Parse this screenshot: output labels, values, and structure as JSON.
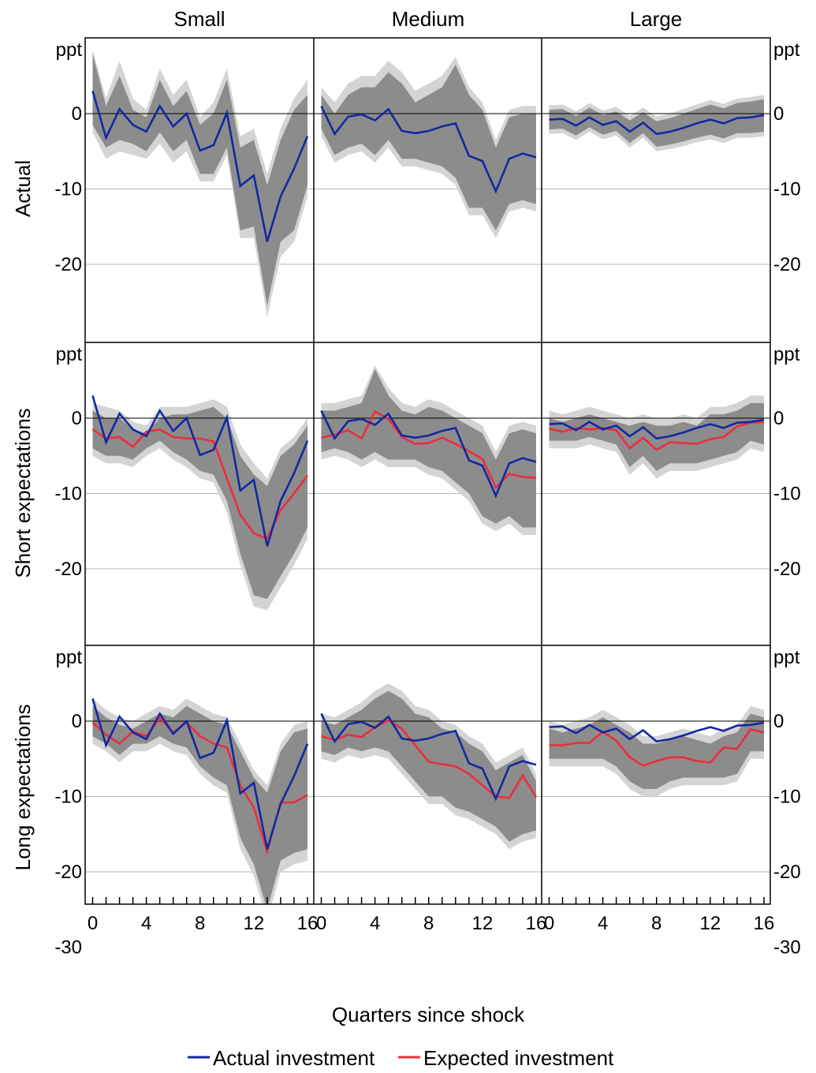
{
  "chart_data": {
    "type": "line",
    "columns": [
      "Small",
      "Medium",
      "Large"
    ],
    "rows": [
      "Actual",
      "Short expectations",
      "Long expectations"
    ],
    "unit_label": "ppt",
    "xlabel": "Quarters since shock",
    "x": [
      0,
      1,
      2,
      3,
      4,
      5,
      6,
      7,
      8,
      9,
      10,
      11,
      12,
      13,
      14,
      15,
      16
    ],
    "x_ticks": [
      0,
      4,
      8,
      12,
      16
    ],
    "x_tick_labels": [
      "0",
      "4",
      "8",
      "12",
      "16"
    ],
    "ylim": [
      -30,
      10
    ],
    "y_tick_labels": [
      "0",
      "-10",
      "-20",
      "-30"
    ],
    "legend": {
      "placement": "bottom",
      "entries": [
        "Actual investment",
        "Expected investment"
      ]
    },
    "colors": {
      "actual": "#1428a0",
      "expected": "#ec2d3c",
      "band_inner": "#8c8c8c",
      "band_outer": "#d4d4d4",
      "grid": "#b4b4b4",
      "zero_line": "#000000"
    },
    "actual": {
      "Small": [
        3,
        -3.2,
        0.6,
        -1.5,
        -2.4,
        1,
        -1.7,
        0,
        -4.9,
        -4.2,
        0.1,
        -9.6,
        -8.2,
        -17,
        -11,
        -7.3,
        -3
      ],
      "Medium": [
        1,
        -2.7,
        -0.4,
        -0.1,
        -0.9,
        0.6,
        -2.3,
        -2.6,
        -2.3,
        -1.7,
        -1.3,
        -5.6,
        -6.3,
        -10.3,
        -6,
        -5.3,
        -5.8
      ],
      "Large": [
        -0.8,
        -0.7,
        -1.6,
        -0.5,
        -1.5,
        -1,
        -2.4,
        -1.2,
        -2.7,
        -2.4,
        -1.9,
        -1.3,
        -0.8,
        -1.3,
        -0.6,
        -0.5,
        -0.2
      ]
    },
    "bands": {
      "Actual": {
        "Small": {
          "inner_upper": [
            8,
            1,
            5,
            0.5,
            -0.5,
            4.5,
            1,
            3,
            -1.5,
            0,
            4.5,
            -4.5,
            -3.5,
            -9.5,
            -3.5,
            0.5,
            2.5
          ],
          "inner_lower": [
            -1.5,
            -4.5,
            -3.5,
            -4,
            -5,
            -2.5,
            -5,
            -3.5,
            -8,
            -8,
            -4.5,
            -15.5,
            -15,
            -25.5,
            -17,
            -15.5,
            -9.5
          ],
          "outer_upper": [
            8.5,
            2,
            7,
            2,
            0.5,
            6,
            2.5,
            4.5,
            -0.5,
            1.5,
            6,
            -3,
            -2,
            -8,
            -2,
            2,
            4.5
          ],
          "outer_lower": [
            -2.5,
            -6,
            -5,
            -5.5,
            -6,
            -4,
            -6.5,
            -5,
            -9,
            -9,
            -5.5,
            -16.5,
            -16.5,
            -27,
            -19,
            -17,
            -11
          ]
        },
        "Medium": {
          "inner_upper": [
            2.5,
            0,
            2.5,
            3.5,
            3.5,
            5.5,
            4,
            1.5,
            2.5,
            3.5,
            6.5,
            2.5,
            0.5,
            -4.5,
            -0.5,
            0,
            0
          ],
          "inner_lower": [
            -2,
            -5.5,
            -4.5,
            -4,
            -5.5,
            -3.5,
            -6,
            -6,
            -6.5,
            -7,
            -8.5,
            -12.5,
            -12.5,
            -15.5,
            -12,
            -11.5,
            -12
          ],
          "outer_upper": [
            3.5,
            1.5,
            4,
            5,
            5,
            7,
            5.5,
            3,
            4,
            5,
            7.5,
            3.5,
            1.5,
            -3.5,
            0.5,
            1,
            1
          ],
          "outer_lower": [
            -3,
            -6.5,
            -5.5,
            -5,
            -6.5,
            -4.5,
            -7,
            -7,
            -7.5,
            -8,
            -9.5,
            -13.5,
            -13.5,
            -16.5,
            -13,
            -12.5,
            -13
          ]
        },
        "Large": {
          "inner_upper": [
            0.5,
            0.6,
            -0.3,
            0.8,
            -0.2,
            0.3,
            -0.9,
            0.2,
            -1,
            -0.6,
            0,
            0.6,
            1.2,
            0.7,
            1.4,
            1.6,
            1.9
          ],
          "inner_lower": [
            -2.1,
            -2,
            -2.9,
            -1.8,
            -2.8,
            -2.3,
            -3.9,
            -2.6,
            -4.4,
            -4.1,
            -3.7,
            -3.2,
            -2.8,
            -3.3,
            -2.6,
            -2.6,
            -2.4
          ],
          "outer_upper": [
            1.1,
            1.2,
            0.3,
            1.4,
            0.4,
            0.9,
            -0.3,
            0.8,
            -0.4,
            0,
            0.6,
            1.2,
            1.8,
            1.3,
            2,
            2.2,
            2.5
          ],
          "outer_lower": [
            -2.7,
            -2.6,
            -3.5,
            -2.4,
            -3.4,
            -2.9,
            -4.5,
            -3.2,
            -5,
            -4.7,
            -4.3,
            -3.8,
            -3.4,
            -3.9,
            -3.2,
            -3.2,
            -3
          ]
        }
      },
      "Short expectations": {
        "Small": {
          "inner_upper": [
            1,
            0,
            0,
            -1.5,
            -2,
            0,
            0.5,
            0.5,
            1,
            1.5,
            0,
            -5,
            -7.5,
            -9,
            -5,
            -3.5,
            -1
          ],
          "inner_lower": [
            -4,
            -5,
            -5,
            -5.5,
            -4,
            -3,
            -4.5,
            -5.5,
            -7,
            -7.5,
            -11,
            -18,
            -23.5,
            -24,
            -21,
            -18,
            -14.5
          ],
          "outer_upper": [
            2,
            1.5,
            1,
            -0.5,
            -1,
            1.5,
            1.5,
            1.5,
            2,
            2.5,
            1.5,
            -3.5,
            -6,
            -8,
            -4,
            -2.5,
            0
          ],
          "outer_lower": [
            -5,
            -6,
            -6,
            -6.5,
            -5,
            -4,
            -5.5,
            -6.5,
            -8,
            -8.5,
            -12.5,
            -19.5,
            -25,
            -25.5,
            -22.5,
            -19.5,
            -16
          ]
        },
        "Medium": {
          "inner_upper": [
            1,
            1,
            1.5,
            2,
            6.5,
            3,
            1,
            0.5,
            1.5,
            1,
            0,
            -1,
            -2,
            -5.5,
            -2,
            -1.5,
            -2
          ],
          "inner_lower": [
            -4.5,
            -4,
            -4.5,
            -5.5,
            -4.5,
            -5.5,
            -5.5,
            -5.5,
            -6.5,
            -7,
            -8.5,
            -10,
            -13,
            -14,
            -13,
            -14.5,
            -14.5
          ],
          "outer_upper": [
            2,
            2,
            2.5,
            3,
            7,
            4,
            2,
            1.5,
            2.5,
            2,
            1,
            0,
            -1,
            -4.5,
            -1,
            -0.5,
            -1
          ],
          "outer_lower": [
            -5.5,
            -5,
            -5.5,
            -6.5,
            -5.5,
            -6.5,
            -6.5,
            -6.5,
            -7.5,
            -8,
            -9.5,
            -11,
            -14,
            -15,
            -14,
            -15.5,
            -15.5
          ]
        },
        "Large": {
          "inner_upper": [
            0,
            -0.5,
            0,
            0.5,
            0,
            -0.5,
            -1,
            -0.5,
            -1,
            -1,
            -0.5,
            -1,
            0.5,
            0.5,
            1,
            2,
            2
          ],
          "inner_lower": [
            -3,
            -3,
            -3,
            -2.5,
            -3,
            -3.5,
            -6.5,
            -5,
            -7,
            -6,
            -6,
            -6,
            -5.5,
            -5,
            -4.5,
            -3,
            -3.5
          ],
          "outer_upper": [
            1,
            0.5,
            1,
            1.5,
            1,
            0.5,
            0,
            0.5,
            0,
            0,
            0.5,
            0,
            1.5,
            1.5,
            2,
            3,
            3
          ],
          "outer_lower": [
            -4,
            -4,
            -4,
            -3.5,
            -4,
            -4.5,
            -7.5,
            -6,
            -8,
            -7,
            -7,
            -7,
            -6.5,
            -6,
            -5.5,
            -4,
            -4.5
          ]
        }
      },
      "Long expectations": {
        "Small": {
          "inner_upper": [
            2,
            0.5,
            -0.5,
            -1,
            0,
            1,
            0.5,
            2,
            1,
            0,
            -0.5,
            -4,
            -7.5,
            -9.5,
            -4,
            -1.5,
            -1
          ],
          "inner_lower": [
            -2,
            -3,
            -4.5,
            -3,
            -3,
            -2,
            -3,
            -3.5,
            -6,
            -7.5,
            -8.5,
            -15.5,
            -19,
            -25,
            -18.5,
            -17.5,
            -17
          ],
          "outer_upper": [
            3,
            1.5,
            0.5,
            0,
            1,
            2,
            1.5,
            3,
            2,
            1,
            0.5,
            -3,
            -6.5,
            -8.5,
            -3,
            -0.5,
            0
          ],
          "outer_lower": [
            -3,
            -4,
            -5.5,
            -4,
            -4,
            -3,
            -4,
            -4.5,
            -7,
            -8.5,
            -9.5,
            -17,
            -20.5,
            -26.5,
            -20,
            -19,
            -18.5
          ]
        },
        "Medium": {
          "inner_upper": [
            0,
            -0.5,
            0.5,
            1.5,
            3,
            4,
            3,
            1,
            0.5,
            -1,
            -1.5,
            -3,
            -4,
            -6.5,
            -5.5,
            -4.5,
            -8
          ],
          "inner_lower": [
            -4,
            -4.5,
            -3.5,
            -4,
            -3.5,
            -4,
            -6,
            -8,
            -10,
            -10,
            -11.5,
            -12,
            -13,
            -14,
            -16,
            -15,
            -14.5
          ],
          "outer_upper": [
            1,
            0.5,
            1.5,
            2.5,
            4,
            5,
            4,
            2,
            1.5,
            0,
            -0.5,
            -2,
            -3,
            -5.5,
            -4.5,
            -3.5,
            -7
          ],
          "outer_lower": [
            -5,
            -5.5,
            -4.5,
            -5,
            -4.5,
            -5,
            -7,
            -9,
            -11,
            -11,
            -12.5,
            -13,
            -14,
            -15,
            -17,
            -16,
            -15.5
          ]
        },
        "Large": {
          "inner_upper": [
            -1,
            -1.5,
            -1,
            -0.5,
            0.5,
            -0.5,
            -1.5,
            -3,
            -3,
            -2.5,
            -2,
            -2.5,
            -3,
            -2,
            -1.5,
            1,
            0.5
          ],
          "inner_lower": [
            -5,
            -5,
            -5,
            -5,
            -5,
            -6,
            -8,
            -9,
            -9,
            -8,
            -7.5,
            -7.5,
            -7.5,
            -7.5,
            -7,
            -4,
            -4
          ],
          "outer_upper": [
            0,
            -0.5,
            0,
            0.5,
            1.5,
            0.5,
            -0.5,
            -2,
            -2,
            -1.5,
            -1,
            -1.5,
            -2,
            -1,
            -0.5,
            2,
            1.5
          ],
          "outer_lower": [
            -6,
            -6,
            -6,
            -6,
            -6,
            -7,
            -9,
            -10,
            -10,
            -9,
            -8.5,
            -8.5,
            -8.5,
            -8.5,
            -8,
            -5,
            -5
          ]
        }
      }
    },
    "expected": {
      "Short expectations": {
        "Small": [
          -1.5,
          -2.7,
          -2.5,
          -3.8,
          -1.8,
          -1.5,
          -2.5,
          -2.7,
          -2.7,
          -3.1,
          -8,
          -12.8,
          -15.3,
          -16,
          -12.2,
          -10,
          -7.6
        ],
        "Medium": [
          -2.6,
          -2.2,
          -1.6,
          -2.7,
          0.9,
          -0.1,
          -2.5,
          -3.4,
          -3.3,
          -2.6,
          -3.4,
          -4.4,
          -5.4,
          -9.2,
          -7.4,
          -7.8,
          -7.9
        ],
        "Large": [
          -1.4,
          -1.8,
          -1.3,
          -1.5,
          -1.3,
          -1.6,
          -4,
          -2.6,
          -4.2,
          -3.2,
          -3.3,
          -3.4,
          -2.8,
          -2.5,
          -1.1,
          -0.6,
          -0.5
        ]
      },
      "Long expectations": {
        "Small": [
          -0.2,
          -1.8,
          -3,
          -1.4,
          -2,
          0.4,
          -1.5,
          -0.2,
          -2,
          -3,
          -3.5,
          -8.5,
          -11.5,
          -17.3,
          -10.8,
          -10.8,
          -9.8
        ],
        "Medium": [
          -2,
          -2.5,
          -1.8,
          -2.1,
          -0.8,
          0.1,
          -1,
          -3.2,
          -5.4,
          -5.7,
          -6,
          -7,
          -8.5,
          -10,
          -10.2,
          -7.2,
          -10.1
        ],
        "Large": [
          -3.2,
          -3.2,
          -2.9,
          -2.9,
          -1.4,
          -2.6,
          -4.8,
          -5.9,
          -5.3,
          -4.8,
          -4.8,
          -5.3,
          -5.5,
          -3.5,
          -3.7,
          -1.1,
          -1.5
        ]
      }
    }
  }
}
